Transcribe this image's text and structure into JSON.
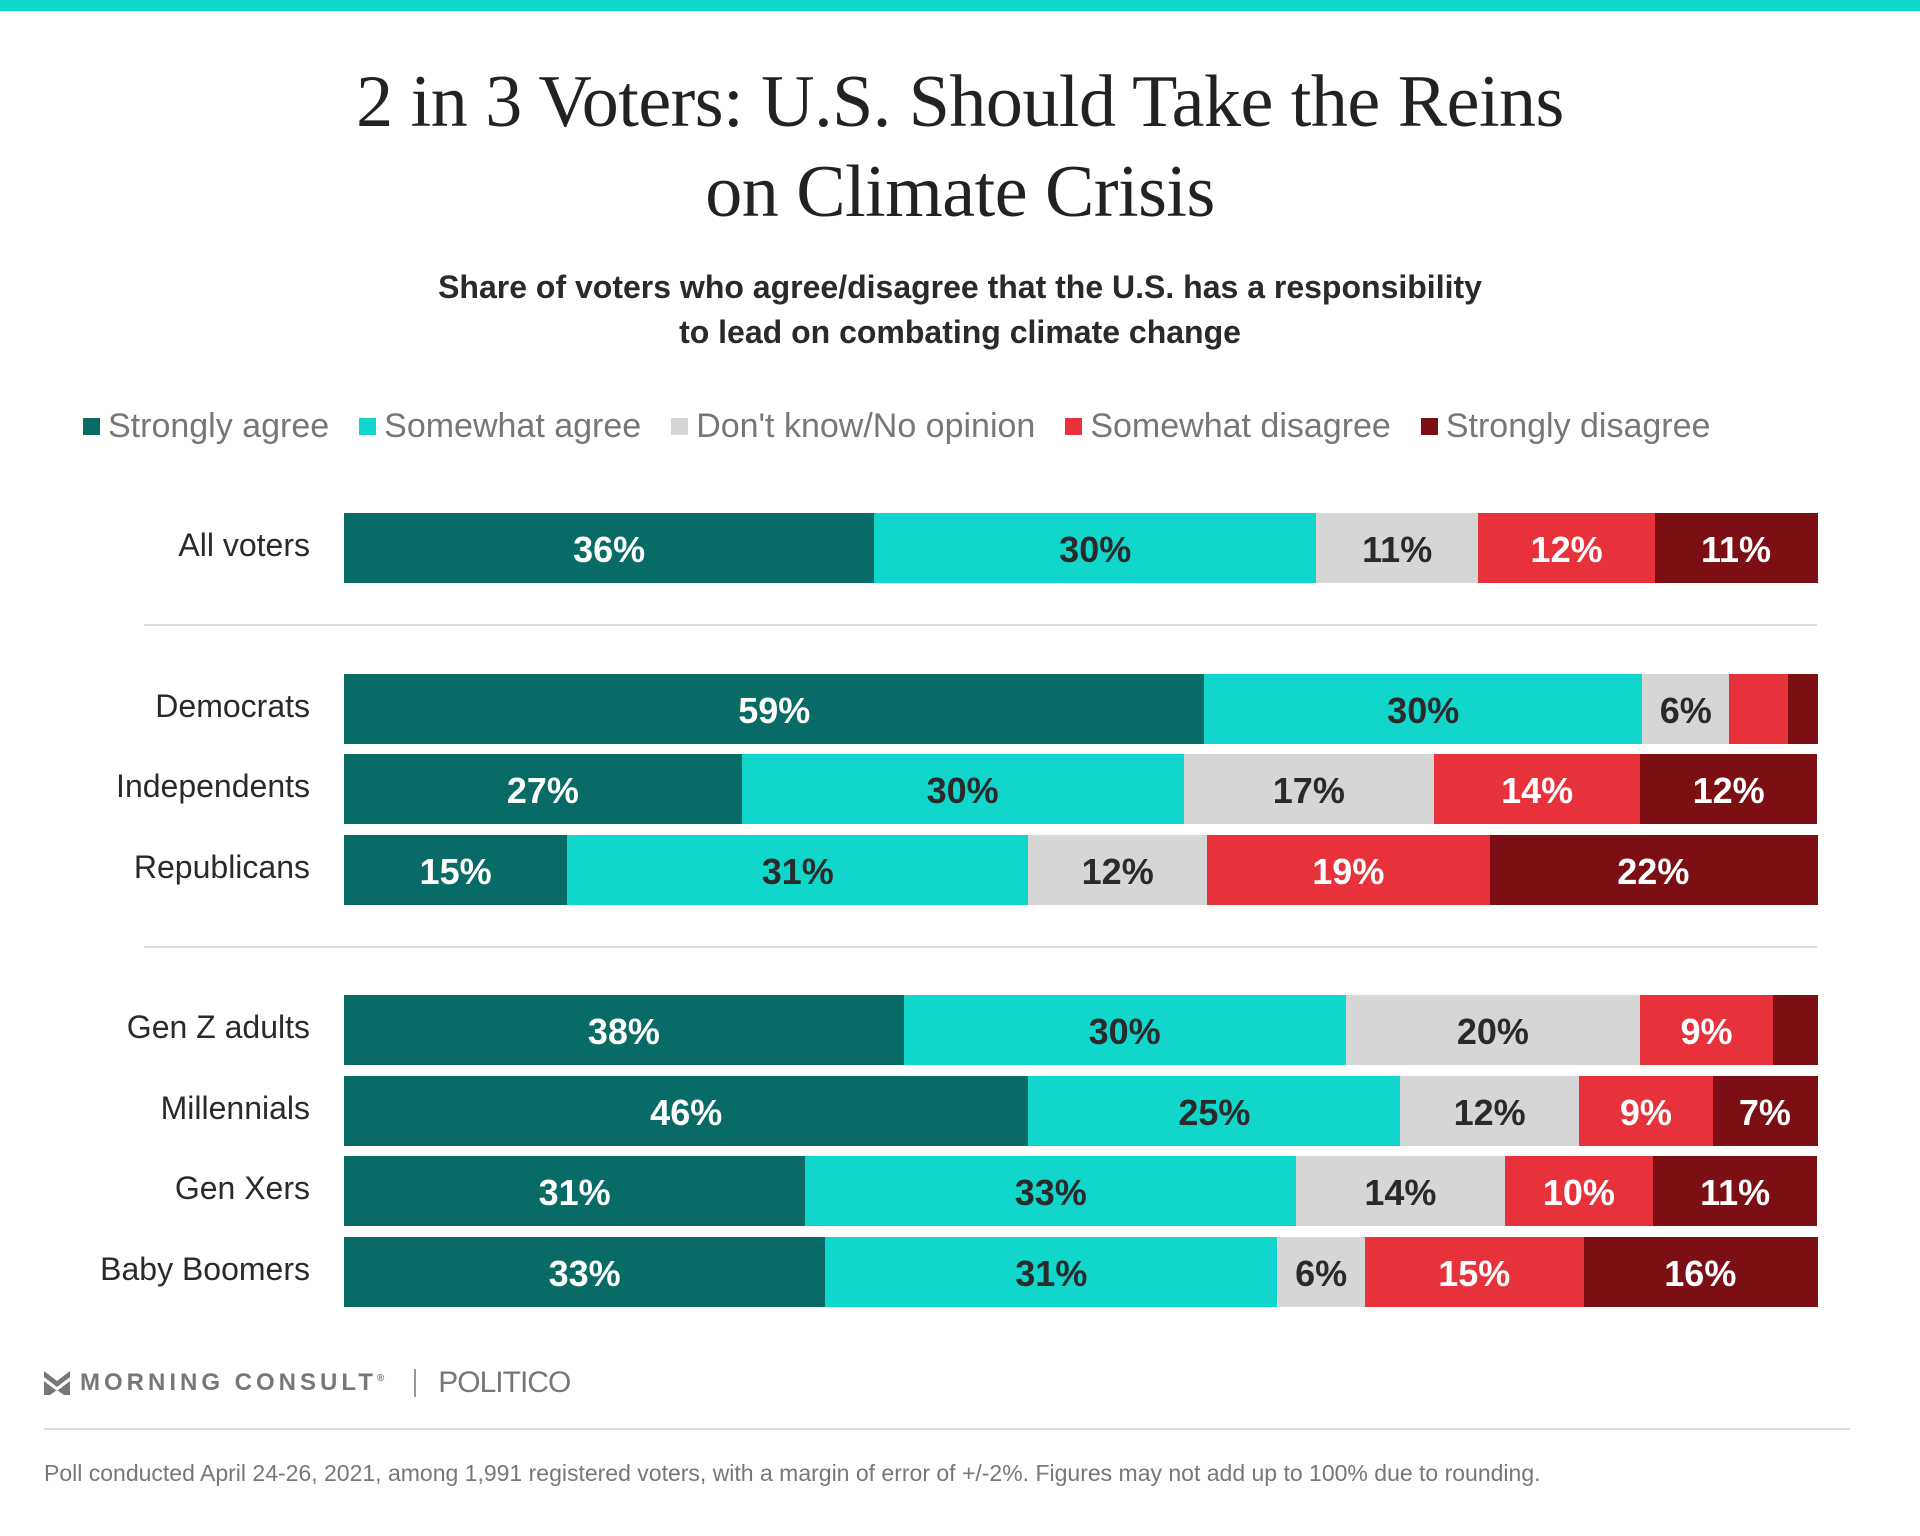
{
  "header": {
    "title_line1": "2 in 3 Voters: U.S. Should Take the Reins",
    "title_line2": "on Climate Crisis",
    "subtitle_line1": "Share of voters who agree/disagree that the U.S. has a responsibility",
    "subtitle_line2": "to lead on combating climate change"
  },
  "colors": {
    "accent_bar": "#10d6cc",
    "strongly_agree": "#086b66",
    "somewhat_agree": "#10d6cc",
    "dont_know": "#d6d6d6",
    "somewhat_disagree": "#e8323b",
    "strongly_disagree": "#7c0f13"
  },
  "chart_data": {
    "type": "bar",
    "orientation": "horizontal-stacked",
    "title": "2 in 3 Voters: U.S. Should Take the Reins on Climate Crisis",
    "subtitle": "Share of voters who agree/disagree that the U.S. has a responsibility to lead on combating climate change",
    "xlabel": "",
    "ylabel": "",
    "xlim": [
      0,
      100
    ],
    "grid": false,
    "legend_position": "top",
    "categories": [
      "All voters",
      "Democrats",
      "Independents",
      "Republicans",
      "Gen Z adults",
      "Millennials",
      "Gen Xers",
      "Baby Boomers"
    ],
    "groups": [
      [
        "All voters"
      ],
      [
        "Democrats",
        "Independents",
        "Republicans"
      ],
      [
        "Gen Z adults",
        "Millennials",
        "Gen Xers",
        "Baby Boomers"
      ]
    ],
    "series": [
      {
        "name": "Strongly agree",
        "color": "#086b66",
        "label_color": "#ffffff",
        "values": [
          36,
          59,
          27,
          15,
          38,
          46,
          31,
          33
        ],
        "labels": [
          "36%",
          "59%",
          "27%",
          "15%",
          "38%",
          "46%",
          "31%",
          "33%"
        ]
      },
      {
        "name": "Somewhat agree",
        "color": "#10d6cc",
        "label_color": "#2a2a2a",
        "values": [
          30,
          30,
          30,
          31,
          30,
          25,
          33,
          31
        ],
        "labels": [
          "30%",
          "30%",
          "30%",
          "31%",
          "30%",
          "25%",
          "33%",
          "31%"
        ]
      },
      {
        "name": "Don't know/No opinion",
        "color": "#d6d6d6",
        "label_color": "#2a2a2a",
        "values": [
          11,
          6,
          17,
          12,
          20,
          12,
          14,
          6
        ],
        "labels": [
          "11%",
          "6%",
          "17%",
          "12%",
          "20%",
          "12%",
          "14%",
          "6%"
        ]
      },
      {
        "name": "Somewhat disagree",
        "color": "#e8323b",
        "label_color": "#ffffff",
        "values": [
          12,
          4,
          14,
          19,
          9,
          9,
          10,
          15
        ],
        "labels": [
          "12%",
          "",
          "14%",
          "19%",
          "9%",
          "9%",
          "10%",
          "15%"
        ]
      },
      {
        "name": "Strongly disagree",
        "color": "#7c0f13",
        "label_color": "#ffffff",
        "values": [
          11,
          2,
          12,
          22,
          3,
          7,
          11,
          16
        ],
        "labels": [
          "11%",
          "",
          "12%",
          "22%",
          "",
          "7%",
          "11%",
          "16%"
        ]
      }
    ]
  },
  "footer": {
    "brand": "MORNING CONSULT",
    "brand_mark": "®",
    "partner": "POLITICO",
    "note": "Poll conducted April 24-26, 2021, among 1,991 registered voters, with a margin of error of +/-2%. Figures may not add up to 100% due to rounding."
  }
}
